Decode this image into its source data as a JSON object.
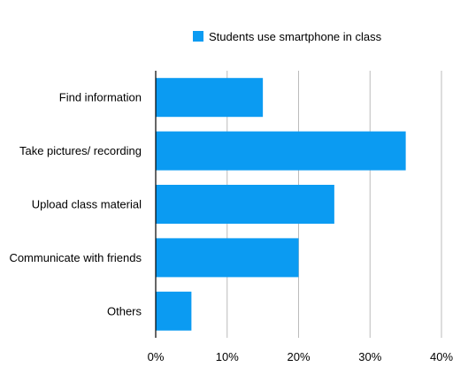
{
  "chart_data": {
    "type": "bar",
    "orientation": "horizontal",
    "categories": [
      "Find information",
      "Take pictures/ recording",
      "Upload class material",
      "Communicate with friends",
      "Others"
    ],
    "series": [
      {
        "name": "Students use smartphone in class",
        "values": [
          15,
          35,
          25,
          20,
          5
        ],
        "color": "#0b9bf2"
      }
    ],
    "x_ticks": [
      "0%",
      "10%",
      "20%",
      "30%",
      "40%"
    ],
    "xlim": [
      0,
      40
    ],
    "grid": "vertical",
    "legend": "top-center",
    "colors": {
      "grid": "#bbbbbb",
      "axis": "#000000",
      "text": "#000000"
    }
  }
}
